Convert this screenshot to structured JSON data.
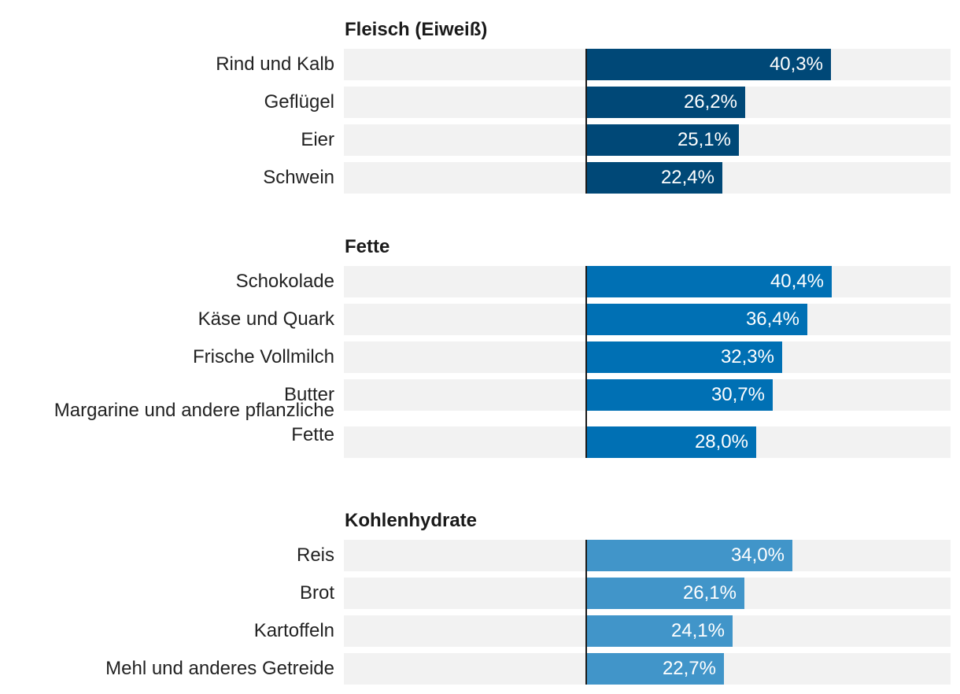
{
  "chart_data": {
    "type": "bar",
    "orientation": "horizontal",
    "title": "",
    "xlabel": "",
    "ylabel": "",
    "xlim": [
      0,
      100
    ],
    "grid": false,
    "legend": "none",
    "groups": [
      {
        "name": "Fleisch (Eiweiß)",
        "color": "#004877",
        "items": [
          {
            "label": "Rind und Kalb",
            "value": 40.3,
            "display": "40,3%"
          },
          {
            "label": "Geflügel",
            "value": 26.2,
            "display": "26,2%"
          },
          {
            "label": "Eier",
            "value": 25.1,
            "display": "25,1%"
          },
          {
            "label": "Schwein",
            "value": 22.4,
            "display": "22,4%"
          }
        ]
      },
      {
        "name": "Fette",
        "color": "#0070b4",
        "items": [
          {
            "label": "Schokolade",
            "value": 40.4,
            "display": "40,4%"
          },
          {
            "label": "Käse und Quark",
            "value": 36.4,
            "display": "36,4%"
          },
          {
            "label": "Frische Vollmilch",
            "value": 32.3,
            "display": "32,3%"
          },
          {
            "label": "Butter",
            "value": 30.7,
            "display": "30,7%"
          },
          {
            "label": "Margarine und andere pflanzliche Fette",
            "lines": [
              "Margarine und andere pflanzliche",
              "Fette"
            ],
            "value": 28.0,
            "display": "28,0%"
          }
        ]
      },
      {
        "name": "Kohlenhydrate",
        "color": "#4195c9",
        "items": [
          {
            "label": "Reis",
            "value": 34.0,
            "display": "34,0%"
          },
          {
            "label": "Brot",
            "value": 26.1,
            "display": "26,1%"
          },
          {
            "label": "Kartoffeln",
            "value": 24.1,
            "display": "24,1%"
          },
          {
            "label": "Mehl und anderes Getreide",
            "value": 22.7,
            "display": "22,7%"
          }
        ]
      }
    ]
  }
}
